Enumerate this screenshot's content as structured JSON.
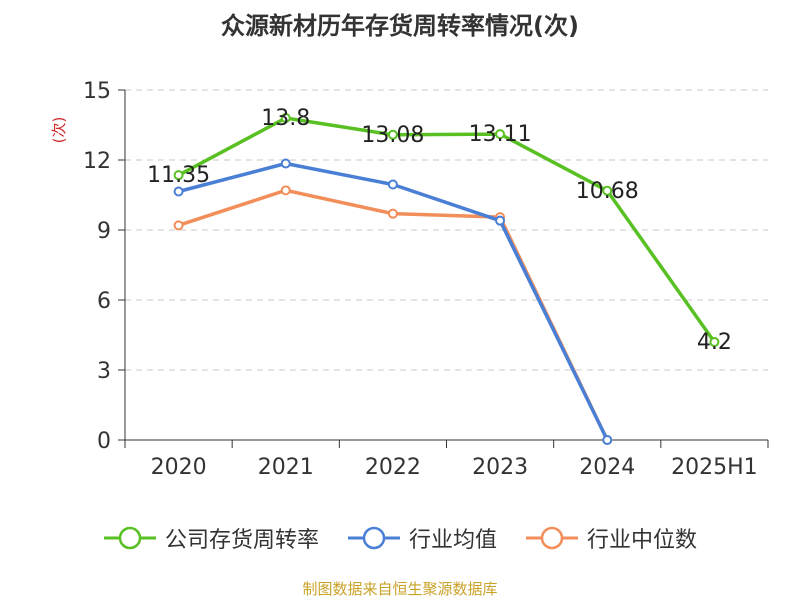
{
  "chart_data": {
    "type": "line",
    "title": "众源新材历年存货周转率情况(次)",
    "ylabel": "(次)",
    "categories": [
      "2020",
      "2021",
      "2022",
      "2023",
      "2024",
      "2025H1"
    ],
    "ylim": [
      0,
      15
    ],
    "yticks": [
      0,
      3,
      6,
      9,
      12,
      15
    ],
    "grid": true,
    "legend_position": "bottom",
    "series": [
      {
        "name": "公司存货周转率",
        "color": "#58c022",
        "values": [
          11.35,
          13.8,
          13.08,
          13.11,
          10.68,
          4.2
        ],
        "labels": [
          "11.35",
          "13.8",
          "13.08",
          "13.11",
          "10.68",
          "4.2"
        ]
      },
      {
        "name": "行业均值",
        "color": "#4a7fd6",
        "values": [
          10.65,
          11.85,
          10.95,
          9.4,
          0,
          null
        ]
      },
      {
        "name": "行业中位数",
        "color": "#f28e5a",
        "values": [
          9.2,
          10.7,
          9.7,
          9.55,
          0,
          null
        ]
      }
    ]
  },
  "footer": {
    "source": "制图数据来自恒生聚源数据库"
  }
}
